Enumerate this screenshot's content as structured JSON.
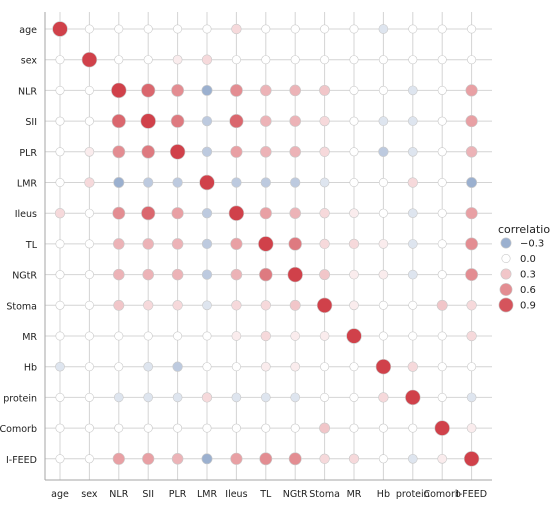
{
  "chart_data": {
    "type": "scatter",
    "subtype": "correlation-bubble-matrix",
    "variables": [
      "age",
      "sex",
      "NLR",
      "SII",
      "PLR",
      "LMR",
      "Ileus",
      "TL",
      "NGtR",
      "Stoma",
      "MR",
      "Hb",
      "protein",
      "Comorb",
      "I-FEED"
    ],
    "x_tick_labels": [
      "age",
      "sex",
      "NLR",
      "SII",
      "PLR",
      "LMR",
      "Ileus",
      "TL",
      "NGtR",
      "Stoma",
      "MR",
      "Hb",
      "protein",
      "Comorb",
      "I-FEED"
    ],
    "y_tick_labels": [
      "age",
      "sex",
      "NLR",
      "SII",
      "PLR",
      "LMR",
      "Ileus",
      "TL",
      "NGtR",
      "Stoma",
      "MR",
      "Hb",
      "protein",
      "Comorb",
      "I-FEED"
    ],
    "matrix": [
      [
        1.0,
        0.0,
        0.0,
        0.0,
        0.0,
        0.0,
        0.2,
        0.0,
        0.0,
        0.0,
        0.0,
        -0.1,
        0.0,
        0.0,
        0.0
      ],
      [
        0.0,
        1.0,
        0.0,
        0.0,
        0.1,
        0.2,
        0.0,
        0.0,
        0.0,
        0.0,
        0.0,
        0.0,
        0.0,
        0.0,
        0.0
      ],
      [
        0.0,
        0.0,
        1.0,
        0.8,
        0.6,
        -0.3,
        0.6,
        0.4,
        0.4,
        0.3,
        0.0,
        0.0,
        -0.1,
        0.0,
        0.5
      ],
      [
        0.0,
        0.0,
        0.8,
        1.0,
        0.7,
        -0.2,
        0.8,
        0.4,
        0.4,
        0.2,
        0.0,
        -0.1,
        -0.1,
        0.0,
        0.5
      ],
      [
        0.0,
        0.1,
        0.6,
        0.7,
        1.0,
        -0.2,
        0.5,
        0.4,
        0.4,
        0.2,
        0.0,
        -0.2,
        -0.1,
        0.0,
        0.4
      ],
      [
        0.0,
        0.2,
        -0.3,
        -0.2,
        -0.2,
        1.0,
        -0.2,
        -0.2,
        -0.2,
        -0.1,
        0.0,
        0.0,
        0.2,
        0.0,
        -0.3
      ],
      [
        0.2,
        0.0,
        0.6,
        0.8,
        0.5,
        -0.2,
        1.0,
        0.5,
        0.4,
        0.2,
        0.1,
        0.0,
        -0.1,
        0.0,
        0.5
      ],
      [
        0.0,
        0.0,
        0.4,
        0.4,
        0.4,
        -0.2,
        0.5,
        1.0,
        0.7,
        0.2,
        0.2,
        0.1,
        -0.1,
        0.0,
        0.6
      ],
      [
        0.0,
        0.0,
        0.4,
        0.4,
        0.4,
        -0.2,
        0.4,
        0.7,
        1.0,
        0.3,
        0.1,
        0.1,
        -0.1,
        0.0,
        0.6
      ],
      [
        0.0,
        0.0,
        0.3,
        0.2,
        0.2,
        -0.1,
        0.2,
        0.2,
        0.3,
        1.0,
        0.1,
        0.0,
        0.0,
        0.3,
        0.2
      ],
      [
        0.0,
        0.0,
        0.0,
        0.0,
        0.0,
        0.0,
        0.1,
        0.2,
        0.1,
        0.1,
        1.0,
        0.0,
        0.0,
        0.0,
        0.2
      ],
      [
        -0.1,
        0.0,
        0.0,
        -0.1,
        -0.2,
        0.0,
        0.0,
        0.1,
        0.1,
        0.0,
        0.0,
        1.0,
        0.2,
        0.0,
        0.0
      ],
      [
        0.0,
        0.0,
        -0.1,
        -0.1,
        -0.1,
        0.2,
        -0.1,
        -0.1,
        -0.1,
        0.0,
        0.0,
        0.2,
        1.0,
        0.0,
        -0.1
      ],
      [
        0.0,
        0.0,
        0.0,
        0.0,
        0.0,
        0.0,
        0.0,
        0.0,
        0.0,
        0.3,
        0.0,
        0.0,
        0.0,
        1.0,
        0.1
      ],
      [
        0.0,
        0.0,
        0.5,
        0.5,
        0.4,
        -0.3,
        0.5,
        0.6,
        0.6,
        0.2,
        0.2,
        0.0,
        -0.1,
        0.1,
        1.0
      ]
    ],
    "value_range": [
      -0.3,
      1.0
    ],
    "grid": true,
    "legend": {
      "title": "correlation",
      "placement": "right",
      "entries": [
        {
          "label": "−0.3",
          "value": -0.3
        },
        {
          "label": "0.0",
          "value": 0.0
        },
        {
          "label": "0.3",
          "value": 0.3
        },
        {
          "label": "0.6",
          "value": 0.6
        },
        {
          "label": "0.9",
          "value": 0.9
        }
      ]
    },
    "colors": {
      "negative": "#4a6fa8",
      "neutral": "#ffffff",
      "positive": "#c8202a",
      "grid": "#d4d4d4",
      "axis": "#a6a6a6"
    }
  }
}
